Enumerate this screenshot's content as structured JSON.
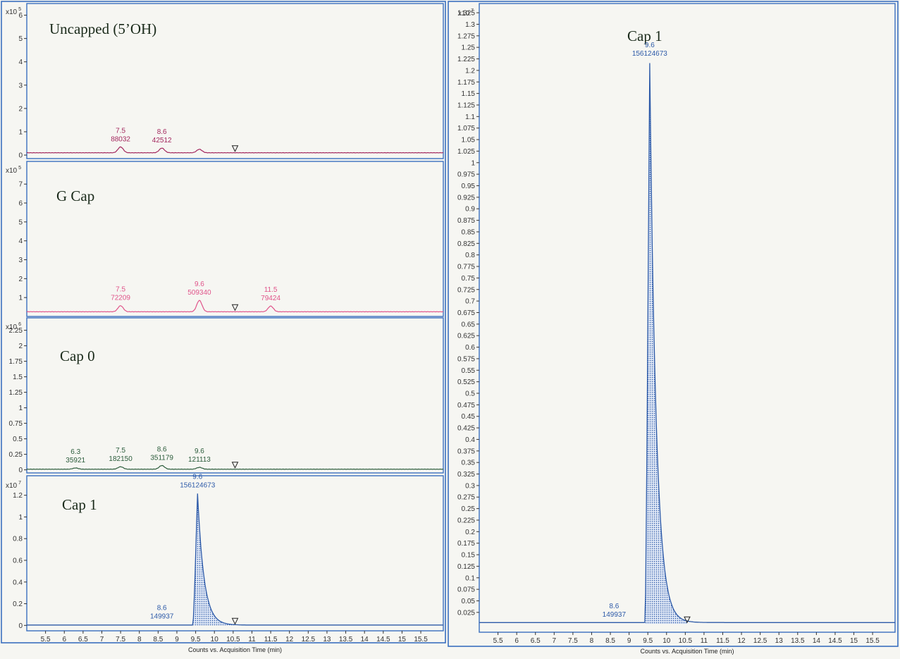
{
  "chart_data": [
    {
      "type": "line",
      "title": "Uncapped (5’OH)",
      "y_multiplier": "x10",
      "y_exponent": "5",
      "yticks": [
        "0",
        "1",
        "2",
        "3",
        "4",
        "5",
        "6"
      ],
      "ylim": [
        -0.15,
        6.5
      ],
      "xlim": [
        5.0,
        16.1
      ],
      "color": "#a3285e",
      "baseline": 0.1,
      "peaks": [
        {
          "rt_label": "7.5",
          "area_label": "88032",
          "x": 7.5,
          "height": 0.25
        },
        {
          "rt_label": "8.6",
          "area_label": "42512",
          "x": 8.6,
          "height": 0.2
        },
        {
          "x": 9.6,
          "height": 0.15
        }
      ],
      "marker_x": 10.55
    },
    {
      "type": "line",
      "title": "G Cap",
      "y_multiplier": "x10",
      "y_exponent": "5",
      "yticks": [
        "1",
        "2",
        "3",
        "4",
        "5",
        "6",
        "7"
      ],
      "ylim": [
        0.0,
        8.2
      ],
      "xlim": [
        5.0,
        16.1
      ],
      "color": "#e0548a",
      "baseline": 0.25,
      "peaks": [
        {
          "rt_label": "7.5",
          "area_label": "72209",
          "x": 7.5,
          "height": 0.32
        },
        {
          "rt_label": "9.6",
          "area_label": "509340",
          "x": 9.6,
          "height": 0.6
        },
        {
          "rt_label": "11.5",
          "area_label": "79424",
          "x": 11.5,
          "height": 0.3
        }
      ],
      "marker_x": 10.55
    },
    {
      "type": "line",
      "title": "Cap 0",
      "y_multiplier": "x10",
      "y_exponent": "6",
      "yticks": [
        "0",
        "0.25",
        "0.5",
        "0.75",
        "1",
        "1.25",
        "1.5",
        "1.75",
        "2",
        "2.25"
      ],
      "ylim": [
        -0.05,
        2.45
      ],
      "xlim": [
        5.0,
        16.1
      ],
      "color": "#2a5b3a",
      "baseline": 0.01,
      "peaks": [
        {
          "rt_label": "6.3",
          "area_label": "35921",
          "x": 6.3,
          "height": 0.02
        },
        {
          "rt_label": "7.5",
          "area_label": "182150",
          "x": 7.5,
          "height": 0.04
        },
        {
          "rt_label": "8.6",
          "area_label": "351179",
          "x": 8.6,
          "height": 0.06
        },
        {
          "rt_label": "9.6",
          "area_label": "121113",
          "x": 9.6,
          "height": 0.03
        }
      ],
      "marker_x": 10.55
    },
    {
      "type": "area",
      "title": "Cap 1",
      "y_multiplier": "x10",
      "y_exponent": "7",
      "yticks": [
        "0",
        "0.2",
        "0.4",
        "0.6",
        "0.8",
        "1",
        "1.2"
      ],
      "ylim": [
        -0.05,
        1.38
      ],
      "xlim": [
        5.0,
        16.1
      ],
      "xticks": [
        "5.5",
        "6",
        "6.5",
        "7",
        "7.5",
        "8",
        "8.5",
        "9",
        "9.5",
        "10",
        "10.5",
        "11",
        "11.5",
        "12",
        "12.5",
        "13",
        "13.5",
        "14",
        "14.5",
        "15",
        "15.5"
      ],
      "xlabel": "Counts vs. Acquisition Time (min)",
      "color": "#2d5aa8",
      "peaks": [
        {
          "rt_label": "9.6",
          "area_label": "156124673",
          "x": 9.55,
          "height": 1.22
        },
        {
          "rt_label": "8.6",
          "area_label": "149937",
          "x": 8.6,
          "height": 0.003
        }
      ],
      "marker_x": 10.55
    },
    {
      "type": "area",
      "title": "Cap 1",
      "y_multiplier": "x10",
      "y_exponent": "7",
      "yticks": [
        "0.025",
        "0.05",
        "0.075",
        "0.1",
        "0.125",
        "0.15",
        "0.175",
        "0.2",
        "0.225",
        "0.25",
        "0.275",
        "0.3",
        "0.325",
        "0.35",
        "0.375",
        "0.4",
        "0.425",
        "0.45",
        "0.475",
        "0.5",
        "0.525",
        "0.55",
        "0.575",
        "0.6",
        "0.625",
        "0.65",
        "0.675",
        "0.7",
        "0.725",
        "0.75",
        "0.775",
        "0.8",
        "0.825",
        "0.85",
        "0.875",
        "0.9",
        "0.925",
        "0.95",
        "0.975",
        "1",
        "1.025",
        "1.05",
        "1.075",
        "1.1",
        "1.125",
        "1.15",
        "1.175",
        "1.2",
        "1.225",
        "1.25",
        "1.275",
        "1.3",
        "1.325"
      ],
      "ylim": [
        -0.018,
        1.345
      ],
      "xlim": [
        5.0,
        16.1
      ],
      "xticks": [
        "5.5",
        "6",
        "6.5",
        "7",
        "7.5",
        "8",
        "8.5",
        "9",
        "9.5",
        "10",
        "10.5",
        "11",
        "11.5",
        "12",
        "12.5",
        "13",
        "13.5",
        "14",
        "14.5",
        "15",
        "15.5"
      ],
      "xlabel": "Counts vs. Acquisition Time (min)",
      "color": "#2d5aa8",
      "peaks": [
        {
          "rt_label": "9.6",
          "area_label": "156124673",
          "x": 9.55,
          "height": 1.22
        },
        {
          "rt_label": "8.6",
          "area_label": "149937",
          "x": 8.6,
          "height": 0.003
        }
      ],
      "marker_x": 10.55
    }
  ]
}
